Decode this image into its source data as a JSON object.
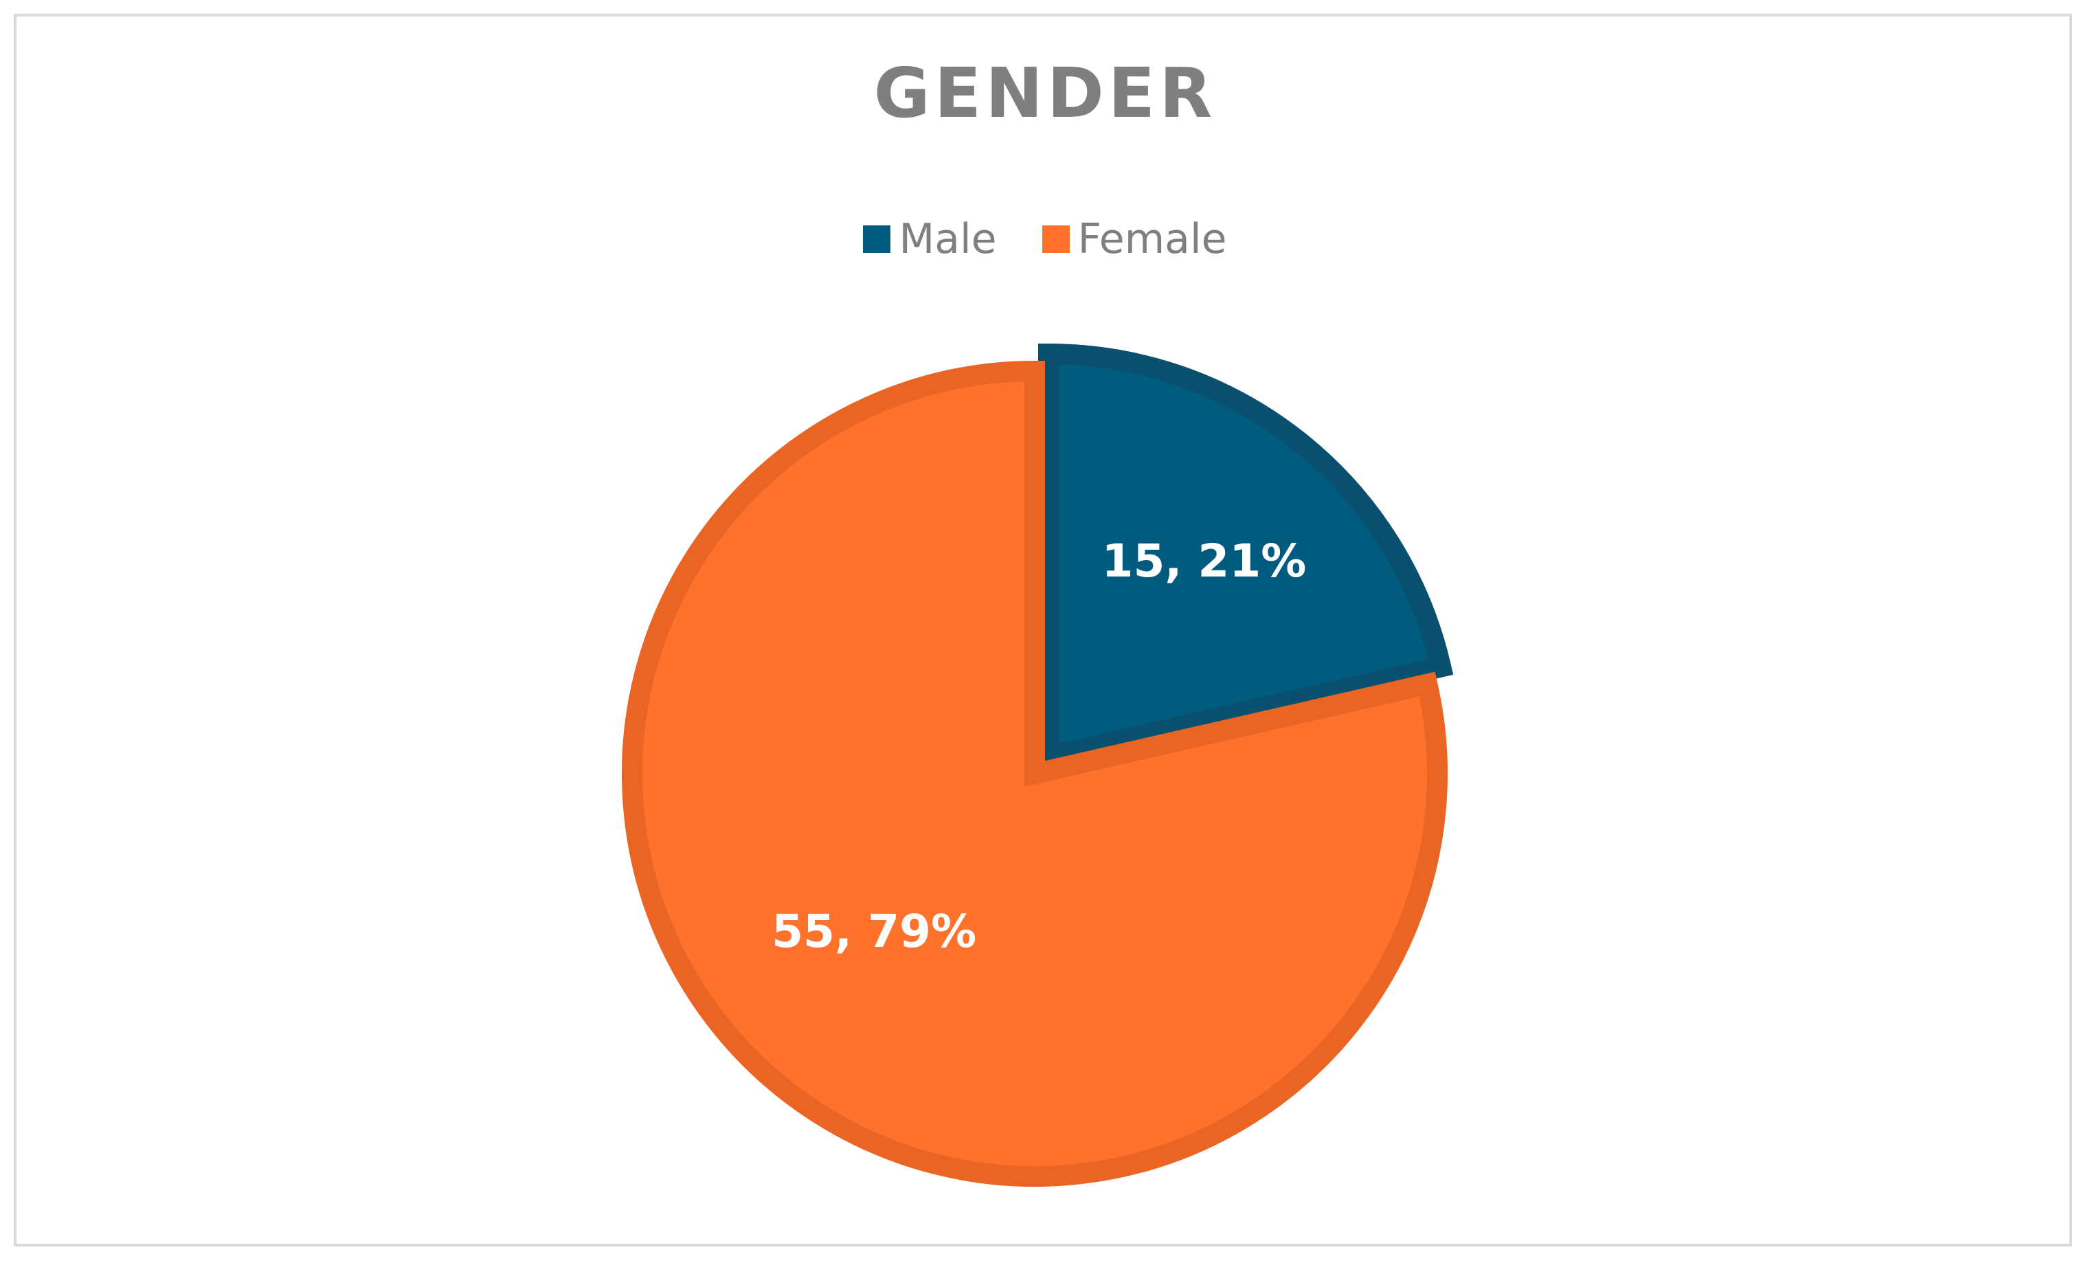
{
  "chart_data": {
    "type": "pie",
    "title": "GENDER",
    "legend_position": "top",
    "categories": [
      "Male",
      "Female"
    ],
    "values": [
      15,
      55
    ],
    "percentages": [
      21,
      79
    ],
    "data_labels": [
      "15, 21%",
      "55, 79%"
    ],
    "colors": [
      "#005b7f",
      "#ff722c"
    ],
    "border_colors": [
      "#08506e",
      "#ea6524"
    ],
    "exploded": [
      true,
      false
    ]
  }
}
